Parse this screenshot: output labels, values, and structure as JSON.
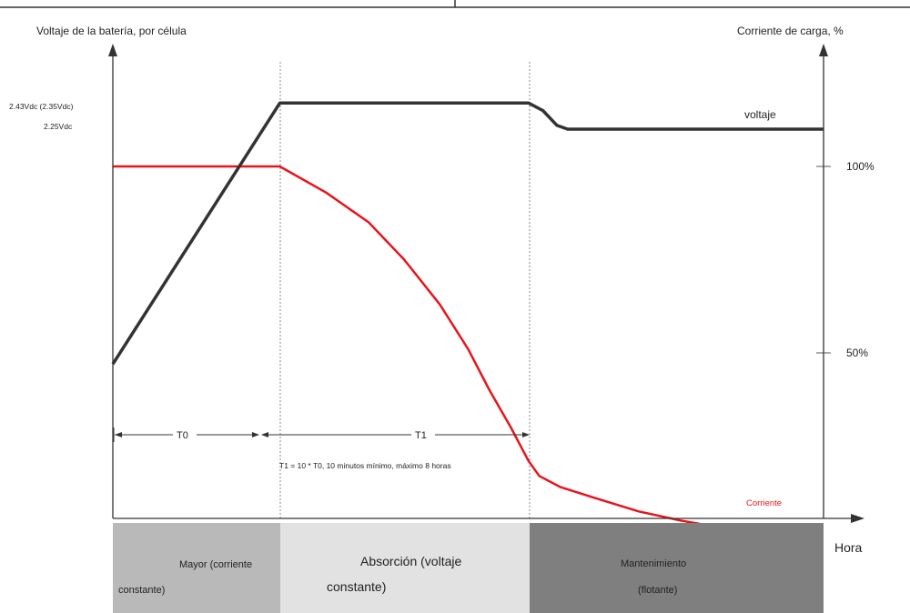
{
  "chart_data": {
    "type": "line",
    "y_left_label": "Voltaje de la batería, por célula",
    "y_right_label": "Corriente de carga, %",
    "x_label": "Hora",
    "left_tick_labels": [
      "2.43Vdc (2.35Vdc)",
      "2.25Vdc"
    ],
    "right_ticks": [
      {
        "label": "100%",
        "value": 100
      },
      {
        "label": "50%",
        "value": 50
      }
    ],
    "phase_boundaries": {
      "T0_end": 0.235,
      "T1_end": 0.585
    },
    "series": [
      {
        "name": "voltaje",
        "color": "#333333",
        "points": [
          [
            0,
            47
          ],
          [
            0.235,
            117
          ],
          [
            0.585,
            117
          ],
          [
            0.605,
            115
          ],
          [
            0.625,
            111
          ],
          [
            0.64,
            110
          ],
          [
            1.0,
            110
          ]
        ]
      },
      {
        "name": "Corriente",
        "color": "#e8141c",
        "points": [
          [
            0,
            100
          ],
          [
            0.235,
            100
          ],
          [
            0.3,
            93
          ],
          [
            0.36,
            85
          ],
          [
            0.41,
            75
          ],
          [
            0.46,
            63
          ],
          [
            0.5,
            51
          ],
          [
            0.53,
            40
          ],
          [
            0.56,
            30
          ],
          [
            0.585,
            21
          ],
          [
            0.6,
            17
          ],
          [
            0.63,
            14
          ],
          [
            0.68,
            11
          ],
          [
            0.74,
            7.5
          ],
          [
            0.8,
            5
          ],
          [
            0.86,
            3
          ],
          [
            0.92,
            1.7
          ],
          [
            0.97,
            0.8
          ],
          [
            1.0,
            0.5
          ]
        ]
      }
    ],
    "annotations": {
      "T0": "T0",
      "T1": "T1",
      "formula": "T1 = 10 * T0, 10 minutos mínimo, máximo 8 horas"
    },
    "phases": [
      {
        "line1": "Mayor (corriente",
        "line2": "constante)",
        "color": "#b9b9b9"
      },
      {
        "line1": "Absorción (voltaje",
        "line2": "constante)",
        "color": "#e2e2e2"
      },
      {
        "line1": "Mantenimiento",
        "line2": "(flotante)",
        "color": "#7f7f7f"
      }
    ]
  }
}
